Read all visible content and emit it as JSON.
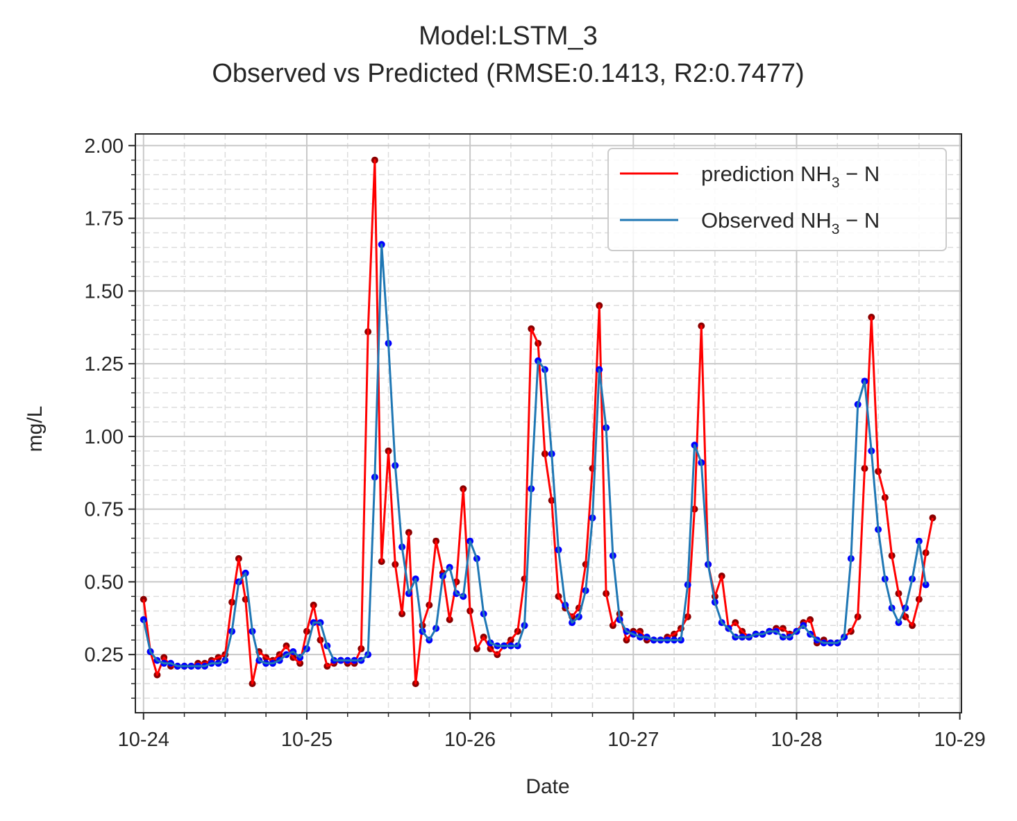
{
  "chart_data": {
    "type": "line",
    "title": "Model:LSTM_3",
    "subtitle": "Observed vs Predicted (RMSE:0.1413, R2:0.7477)",
    "xlabel": "Date",
    "ylabel": "mg/L",
    "x_unit": "days",
    "x_start_label": "10-24",
    "xticks": [
      "10-24",
      "10-25",
      "10-26",
      "10-27",
      "10-28",
      "10-29"
    ],
    "yticks": [
      "0.25",
      "0.50",
      "0.75",
      "1.00",
      "1.25",
      "1.50",
      "1.75",
      "2.00"
    ],
    "ylim": [
      0.05,
      2.04
    ],
    "grid": true,
    "legend": "upper right",
    "series": [
      {
        "name": "prediction NH3 - N",
        "legend_main": "prediction NH",
        "legend_sub": "3",
        "legend_tail": " − N",
        "color": "#ff0000",
        "marker_color": "#8b0000",
        "values": [
          0.44,
          0.26,
          0.18,
          0.24,
          0.21,
          0.21,
          0.21,
          0.21,
          0.22,
          0.22,
          0.23,
          0.24,
          0.25,
          0.43,
          0.58,
          0.44,
          0.15,
          0.26,
          0.24,
          0.23,
          0.25,
          0.28,
          0.24,
          0.22,
          0.33,
          0.42,
          0.3,
          0.21,
          0.22,
          0.23,
          0.22,
          0.22,
          0.27,
          1.36,
          1.95,
          0.57,
          0.95,
          0.56,
          0.39,
          0.67,
          0.15,
          0.35,
          0.42,
          0.64,
          0.53,
          0.37,
          0.5,
          0.82,
          0.4,
          0.27,
          0.31,
          0.27,
          0.25,
          0.28,
          0.3,
          0.33,
          0.51,
          1.37,
          1.32,
          0.94,
          0.78,
          0.45,
          0.41,
          0.38,
          0.41,
          0.56,
          0.89,
          1.45,
          0.46,
          0.35,
          0.39,
          0.3,
          0.33,
          0.33,
          0.3,
          0.3,
          0.3,
          0.31,
          0.32,
          0.34,
          0.38,
          0.75,
          1.38,
          0.56,
          0.45,
          0.52,
          0.34,
          0.36,
          0.33,
          0.31,
          0.32,
          0.32,
          0.33,
          0.34,
          0.34,
          0.32,
          0.33,
          0.36,
          0.37,
          0.29,
          0.3,
          0.29,
          0.29,
          0.31,
          0.33,
          0.38,
          0.89,
          1.41,
          0.88,
          0.79,
          0.59,
          0.46,
          0.38,
          0.35,
          0.44,
          0.6,
          0.72
        ]
      },
      {
        "name": "Observed NH3 - N",
        "legend_main": "Observed NH",
        "legend_sub": "3",
        "legend_tail": " − N",
        "color": "#1f77b4",
        "marker_color": "#0000ff",
        "values": [
          0.37,
          0.26,
          0.23,
          0.22,
          0.22,
          0.21,
          0.21,
          0.21,
          0.21,
          0.21,
          0.22,
          0.22,
          0.23,
          0.33,
          0.5,
          0.53,
          0.33,
          0.23,
          0.22,
          0.22,
          0.23,
          0.25,
          0.26,
          0.24,
          0.27,
          0.36,
          0.36,
          0.28,
          0.23,
          0.23,
          0.23,
          0.23,
          0.23,
          0.25,
          0.86,
          1.66,
          1.32,
          0.9,
          0.62,
          0.46,
          0.51,
          0.33,
          0.3,
          0.34,
          0.52,
          0.55,
          0.46,
          0.45,
          0.64,
          0.58,
          0.39,
          0.29,
          0.28,
          0.28,
          0.28,
          0.28,
          0.35,
          0.82,
          1.26,
          1.23,
          0.94,
          0.61,
          0.42,
          0.36,
          0.38,
          0.47,
          0.72,
          1.23,
          1.03,
          0.59,
          0.37,
          0.33,
          0.32,
          0.31,
          0.31,
          0.3,
          0.3,
          0.3,
          0.3,
          0.3,
          0.49,
          0.97,
          0.91,
          0.56,
          0.43,
          0.36,
          0.34,
          0.31,
          0.31,
          0.31,
          0.32,
          0.32,
          0.33,
          0.33,
          0.31,
          0.31,
          0.33,
          0.35,
          0.32,
          0.3,
          0.29,
          0.29,
          0.29,
          0.31,
          0.58,
          1.11,
          1.19,
          0.95,
          0.68,
          0.51,
          0.41,
          0.36,
          0.41,
          0.51,
          0.64,
          0.49
        ]
      }
    ]
  }
}
